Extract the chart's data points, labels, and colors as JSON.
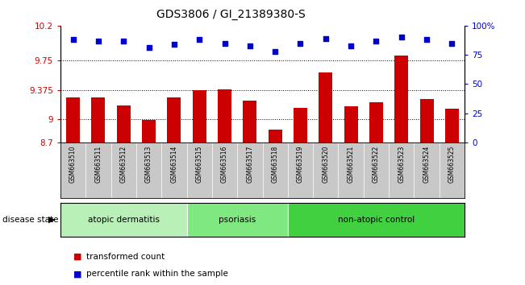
{
  "title": "GDS3806 / GI_21389380-S",
  "samples": [
    "GSM663510",
    "GSM663511",
    "GSM663512",
    "GSM663513",
    "GSM663514",
    "GSM663515",
    "GSM663516",
    "GSM663517",
    "GSM663518",
    "GSM663519",
    "GSM663520",
    "GSM663521",
    "GSM663522",
    "GSM663523",
    "GSM663524",
    "GSM663525"
  ],
  "bar_values": [
    9.28,
    9.28,
    9.18,
    8.99,
    9.28,
    9.37,
    9.38,
    9.24,
    8.87,
    9.14,
    9.6,
    9.17,
    9.22,
    9.82,
    9.26,
    9.13
  ],
  "dot_values": [
    88,
    87,
    87,
    81,
    84,
    88,
    85,
    83,
    78,
    85,
    89,
    83,
    87,
    90,
    88,
    85
  ],
  "bar_color": "#cc0000",
  "dot_color": "#0000cc",
  "ylim_left": [
    8.7,
    10.2
  ],
  "ylim_right": [
    0,
    100
  ],
  "yticks_left": [
    8.7,
    9.0,
    9.375,
    9.75,
    10.2
  ],
  "ytick_labels_left": [
    "8.7",
    "9",
    "9.375",
    "9.75",
    "10.2"
  ],
  "yticks_right": [
    0,
    25,
    50,
    75,
    100
  ],
  "ytick_labels_right": [
    "0",
    "25",
    "50",
    "75",
    "100%"
  ],
  "grid_values": [
    9.0,
    9.375,
    9.75
  ],
  "disease_groups": [
    {
      "label": "atopic dermatitis",
      "start": 0,
      "end": 5,
      "color": "#b8f0b8"
    },
    {
      "label": "psoriasis",
      "start": 5,
      "end": 9,
      "color": "#80e880"
    },
    {
      "label": "non-atopic control",
      "start": 9,
      "end": 16,
      "color": "#40d040"
    }
  ],
  "legend_items": [
    {
      "label": "transformed count",
      "color": "#cc0000"
    },
    {
      "label": "percentile rank within the sample",
      "color": "#0000cc"
    }
  ],
  "disease_state_label": "disease state",
  "background_color": "#ffffff",
  "sample_bg_color": "#c8c8c8",
  "title_fontsize": 10,
  "axis_fontsize": 7.5
}
